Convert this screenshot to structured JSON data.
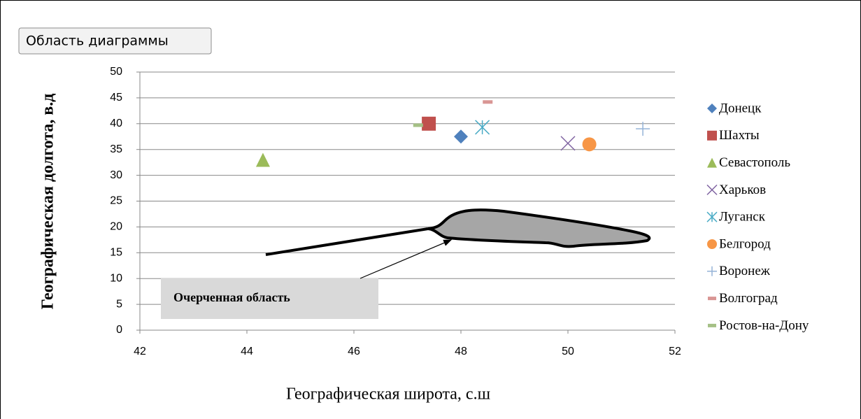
{
  "tooltip": "Область диаграммы",
  "chart_data": {
    "type": "scatter",
    "xlabel": "Географическая широта, с.ш",
    "ylabel": "Географическая долгота, в.д",
    "annotation": "Очерченная область",
    "xlim": [
      42,
      52
    ],
    "xticks": [
      42,
      44,
      46,
      48,
      50,
      52
    ],
    "ylim": [
      0,
      50
    ],
    "yticks": [
      0,
      5,
      10,
      15,
      20,
      25,
      30,
      35,
      40,
      45,
      50
    ],
    "grid": true,
    "legend": "right",
    "series": [
      {
        "name": "Донецк",
        "color": "#4f81bd",
        "marker": "diamond",
        "x": [
          48.0
        ],
        "values": [
          37.5
        ]
      },
      {
        "name": "Шахты",
        "color": "#c0504d",
        "marker": "square",
        "x": [
          47.4
        ],
        "values": [
          40
        ]
      },
      {
        "name": "Севастополь",
        "color": "#9bbb59",
        "marker": "triangle",
        "x": [
          44.3
        ],
        "values": [
          33
        ]
      },
      {
        "name": "Харьков",
        "color": "#8064a2",
        "marker": "x",
        "x": [
          50.0
        ],
        "values": [
          36.2
        ]
      },
      {
        "name": "Луганск",
        "color": "#4bacc6",
        "marker": "star",
        "x": [
          48.4
        ],
        "values": [
          39.3
        ]
      },
      {
        "name": "Белгород",
        "color": "#f79646",
        "marker": "circle",
        "x": [
          50.4
        ],
        "values": [
          36
        ]
      },
      {
        "name": "Воронеж",
        "color": "#95b3d7",
        "marker": "plus",
        "x": [
          51.4
        ],
        "values": [
          39
        ]
      },
      {
        "name": "Волгоград",
        "color": "#d99694",
        "marker": "dash",
        "x": [
          48.5
        ],
        "values": [
          44.2
        ]
      },
      {
        "name": "Ростов-на-Дону",
        "color": "#a5c086",
        "marker": "dash",
        "x": [
          47.2
        ],
        "values": [
          39.7
        ]
      }
    ]
  }
}
